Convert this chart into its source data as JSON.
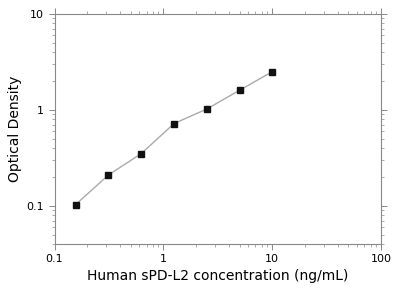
{
  "x": [
    0.156,
    0.313,
    0.625,
    1.25,
    2.5,
    5.0,
    10.0
  ],
  "y": [
    0.103,
    0.21,
    0.35,
    0.72,
    1.02,
    1.6,
    2.5
  ],
  "xlim": [
    0.1,
    100
  ],
  "ylim": [
    0.04,
    10
  ],
  "xlabel": "Human sPD-L2 concentration (ng/mL)",
  "ylabel": "Optical Density",
  "line_color": "#aaaaaa",
  "marker_color": "#111111",
  "marker": "s",
  "marker_size": 5,
  "line_width": 1.0,
  "xlabel_fontsize": 10,
  "ylabel_fontsize": 10,
  "tick_fontsize": 8,
  "background_color": "#ffffff",
  "spine_color": "#888888"
}
